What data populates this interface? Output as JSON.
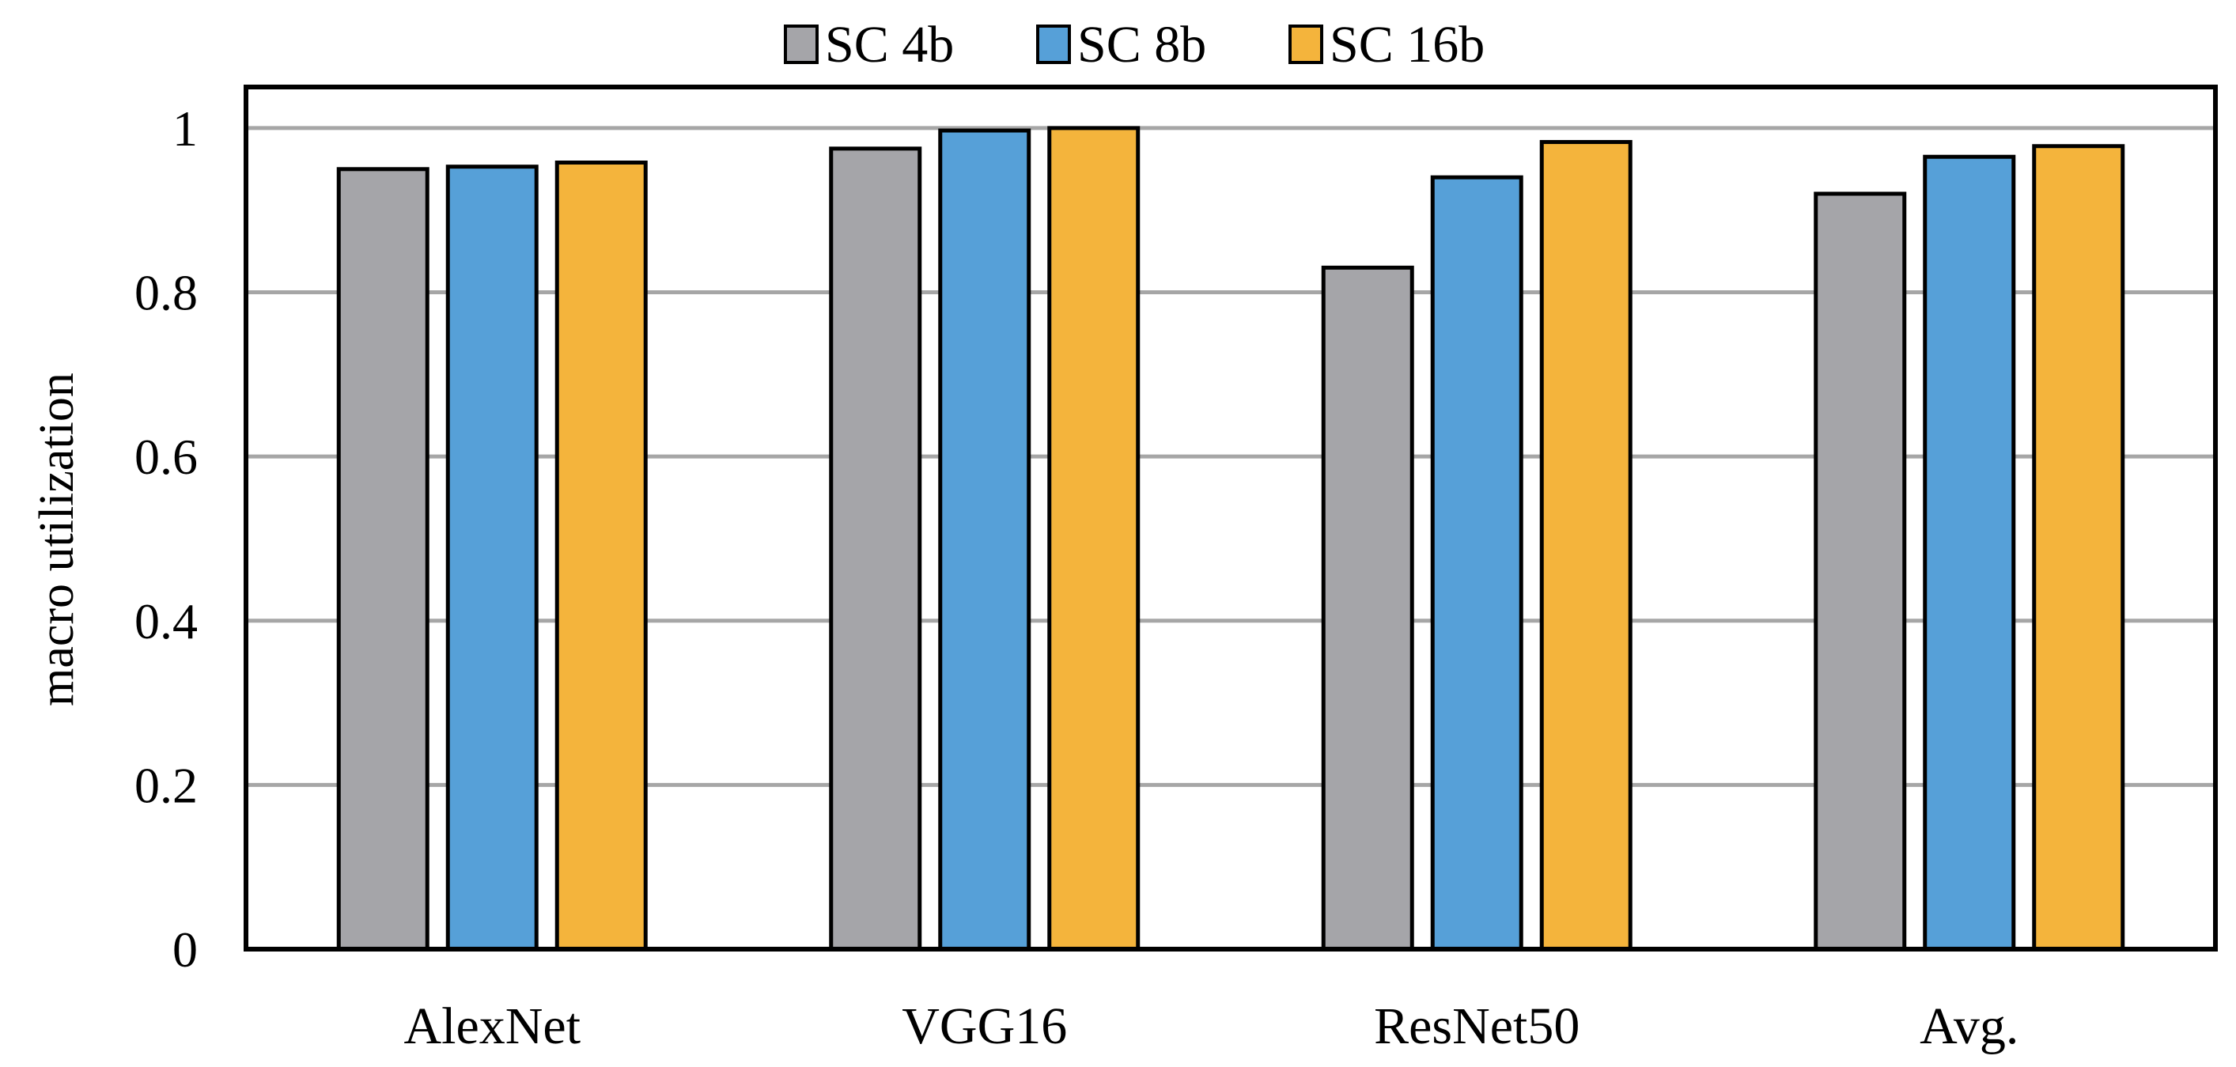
{
  "chart_data": {
    "type": "bar",
    "title": "",
    "xlabel": "",
    "ylabel": "macro utilization",
    "ylim": [
      0,
      1.0
    ],
    "yticks": [
      0,
      0.2,
      0.4,
      0.6,
      0.8,
      1
    ],
    "ytick_labels": [
      "0",
      "0.2",
      "0.4",
      "0.6",
      "0.8",
      "1"
    ],
    "grid": true,
    "legend_position": "top-center",
    "categories": [
      "AlexNet",
      "VGG16",
      "ResNet50",
      "Avg."
    ],
    "series": [
      {
        "name": "SC 4b",
        "color": "#a5a5a9",
        "values": [
          0.95,
          0.975,
          0.83,
          0.92
        ]
      },
      {
        "name": "SC 8b",
        "color": "#56a0d8",
        "values": [
          0.953,
          0.997,
          0.94,
          0.965
        ]
      },
      {
        "name": "SC 16b",
        "color": "#f4b43c",
        "values": [
          0.958,
          1.0,
          0.983,
          0.978
        ]
      }
    ]
  }
}
